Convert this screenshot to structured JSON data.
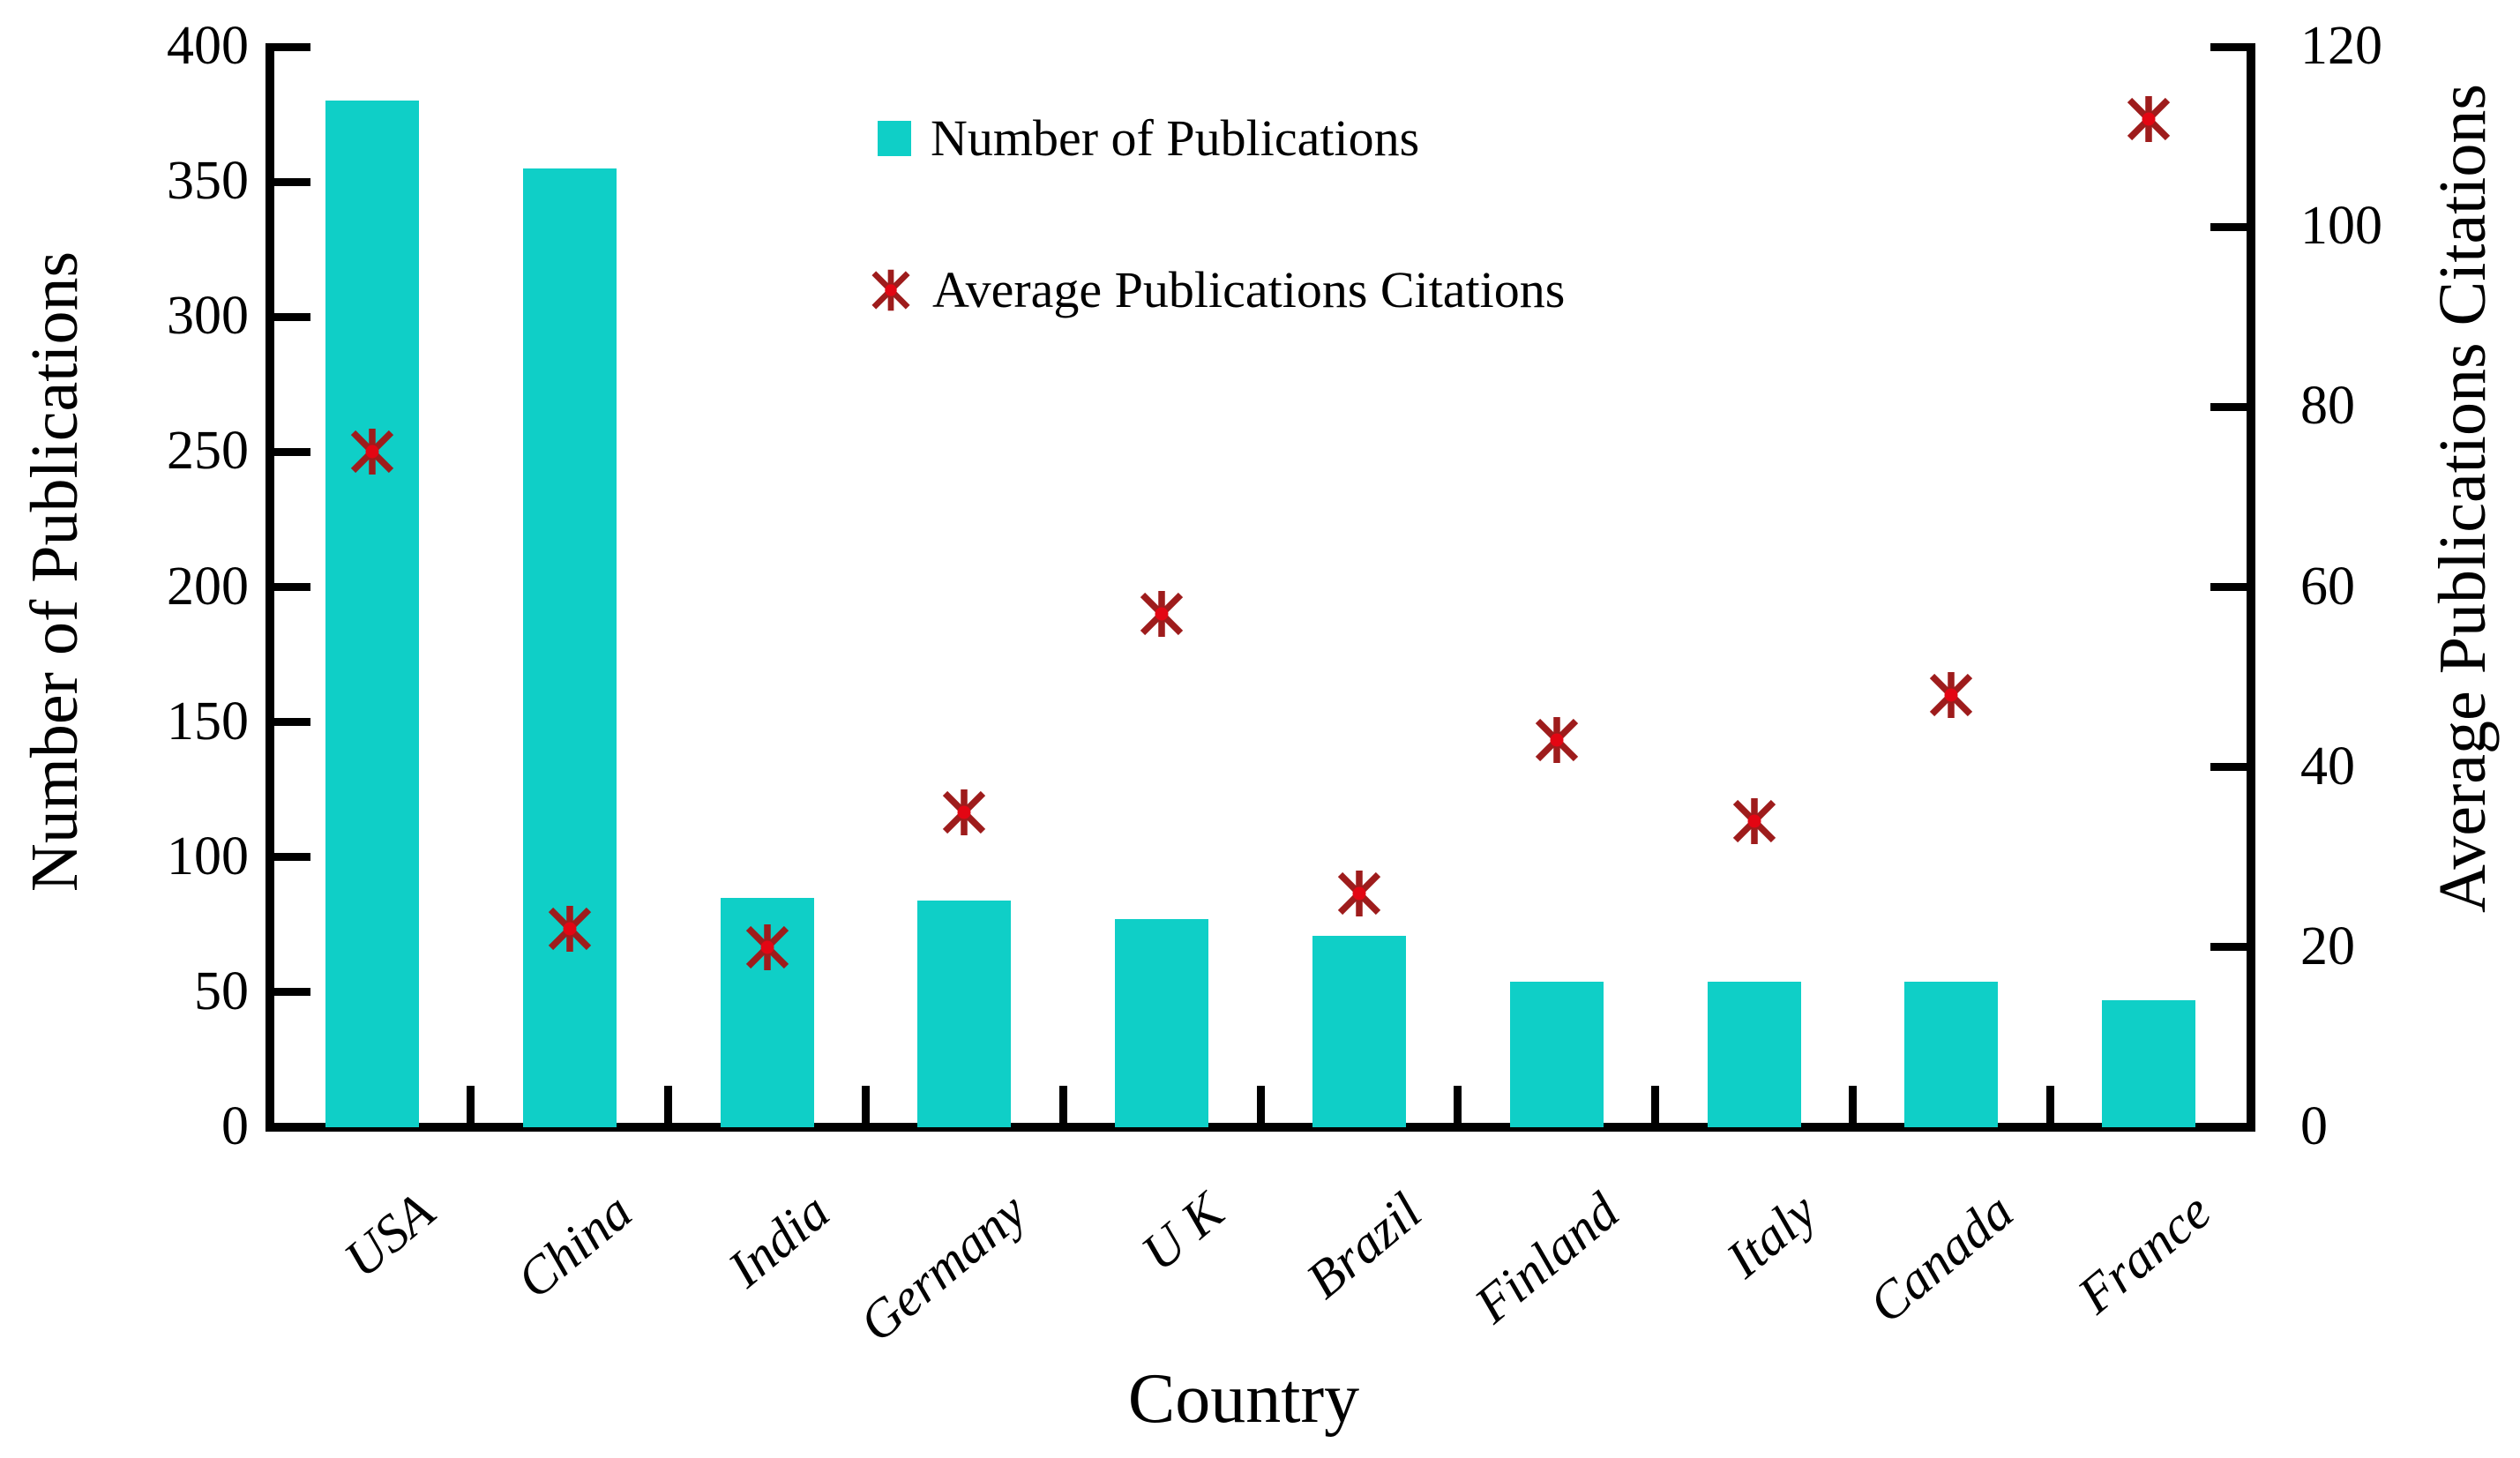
{
  "chart_data": {
    "type": "bar+scatter",
    "categories": [
      "USA",
      "China",
      "India",
      "Germany",
      "U K",
      "Brazil",
      "Finland",
      "Italy",
      "Canada",
      "France"
    ],
    "series": [
      {
        "name": "Number of Publications",
        "type": "bar",
        "axis": "left",
        "marker": "square",
        "color": "#0fcfc7",
        "values": [
          380,
          355,
          85,
          84,
          77,
          71,
          54,
          54,
          54,
          47
        ]
      },
      {
        "name": "Average Publications Citations",
        "type": "scatter",
        "axis": "right",
        "marker": "asterisk",
        "color": "#9e1c1c",
        "marker_center_color": "#e30613",
        "values": [
          75,
          22,
          20,
          35,
          57,
          26,
          43,
          34,
          48,
          112
        ]
      }
    ],
    "left_axis": {
      "label": "Number of Publications",
      "min": 0,
      "max": 400,
      "ticks": [
        0,
        50,
        100,
        150,
        200,
        250,
        300,
        350,
        400
      ]
    },
    "right_axis": {
      "label": "Average Publications Citations",
      "min": 0,
      "max": 120,
      "ticks": [
        0,
        20,
        40,
        60,
        80,
        100,
        120
      ]
    },
    "x_axis": {
      "label": "Country"
    },
    "grid": false,
    "legend_position": "inside upper-center-left"
  }
}
